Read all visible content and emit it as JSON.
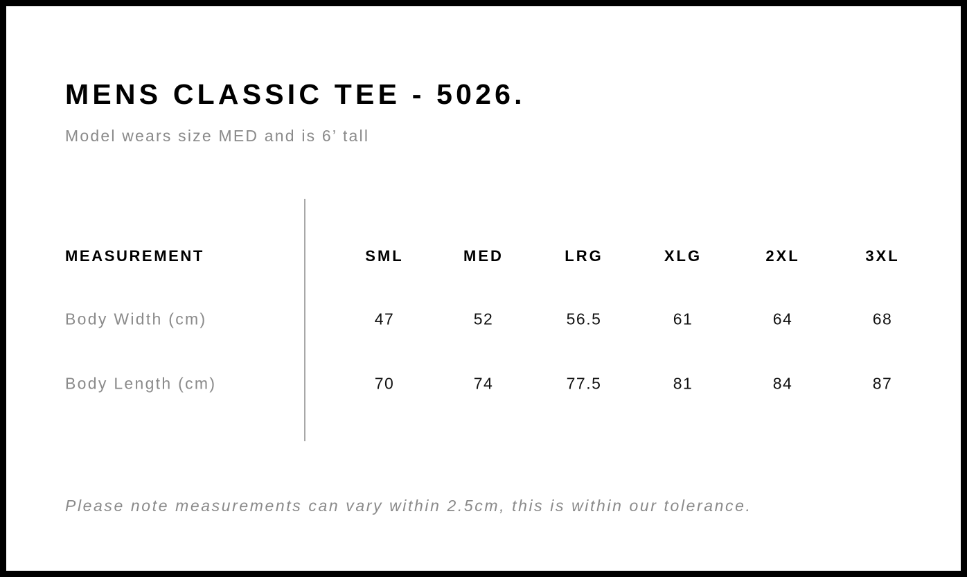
{
  "title": "MENS CLASSIC TEE - 5026.",
  "subtitle": "Model wears size MED and is 6’ tall",
  "table": {
    "header_label": "MEASUREMENT",
    "sizes": [
      "SML",
      "MED",
      "LRG",
      "XLG",
      "2XL",
      "3XL"
    ],
    "rows": [
      {
        "label": "Body Width (cm)",
        "values": [
          "47",
          "52",
          "56.5",
          "61",
          "64",
          "68"
        ]
      },
      {
        "label": "Body Length (cm)",
        "values": [
          "70",
          "74",
          "77.5",
          "81",
          "84",
          "87"
        ]
      }
    ]
  },
  "note": "Please note measurements can vary within 2.5cm, this is within our tolerance."
}
